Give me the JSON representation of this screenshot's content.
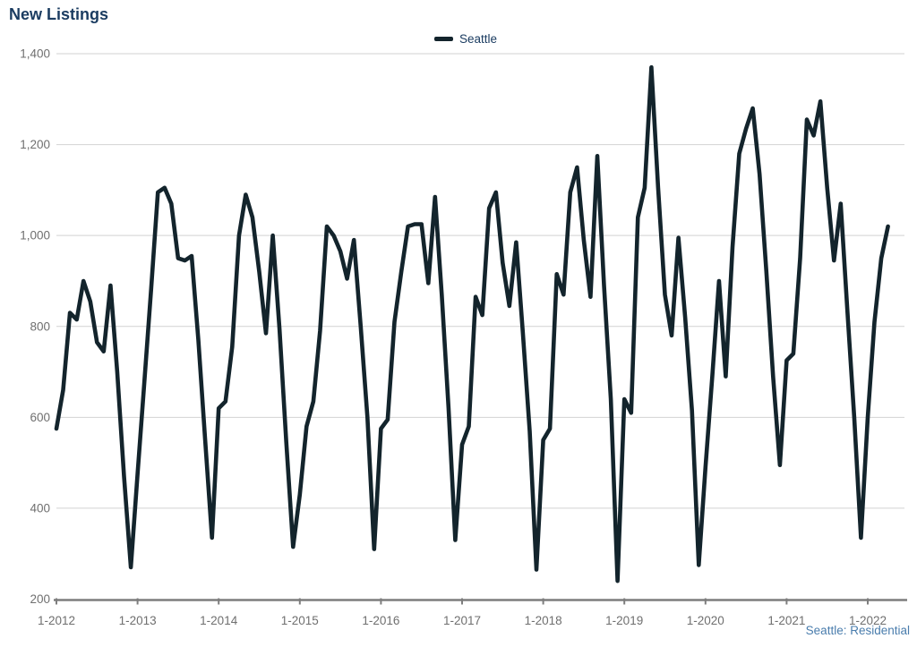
{
  "title": "New Listings",
  "legend": {
    "items": [
      {
        "label": "Seattle",
        "swatch_color": "#13242c"
      }
    ]
  },
  "footnote": "Seattle: Residential",
  "colors": {
    "title_text": "#1b3c61",
    "line": "#13242c",
    "gridline": "#d2d2d2",
    "axis": "#7d7d7d",
    "tick_text": "#6f6f6f",
    "footnote_text": "#4a7dad",
    "background": "#ffffff"
  },
  "chart_data": {
    "type": "line",
    "title": "New Listings",
    "xlabel": "",
    "ylabel": "",
    "ylim": [
      200,
      1400
    ],
    "grid": "horizontal",
    "legend_position": "top-center",
    "yticks": [
      {
        "value": 200,
        "label": "200"
      },
      {
        "value": 400,
        "label": "400"
      },
      {
        "value": 600,
        "label": "600"
      },
      {
        "value": 800,
        "label": "800"
      },
      {
        "value": 1000,
        "label": "1,000"
      },
      {
        "value": 1200,
        "label": "1,200"
      },
      {
        "value": 1400,
        "label": "1,400"
      }
    ],
    "xticks": [
      "1-2012",
      "1-2013",
      "1-2014",
      "1-2015",
      "1-2016",
      "1-2017",
      "1-2018",
      "1-2019",
      "1-2020",
      "1-2021",
      "1-2022"
    ],
    "x_start": "2012-01",
    "x_freq": "monthly",
    "series": [
      {
        "name": "Seattle",
        "color": "#13242c",
        "values": [
          575,
          660,
          830,
          815,
          900,
          855,
          765,
          745,
          890,
          700,
          470,
          270,
          475,
          675,
          880,
          1095,
          1105,
          1070,
          950,
          945,
          955,
          770,
          550,
          335,
          620,
          635,
          755,
          1000,
          1090,
          1040,
          920,
          785,
          1000,
          795,
          545,
          315,
          430,
          580,
          635,
          790,
          1020,
          1000,
          965,
          905,
          990,
          800,
          600,
          310,
          575,
          595,
          810,
          920,
          1020,
          1025,
          1025,
          895,
          1085,
          870,
          620,
          330,
          540,
          580,
          865,
          825,
          1060,
          1095,
          940,
          845,
          985,
          785,
          570,
          265,
          550,
          575,
          915,
          870,
          1095,
          1150,
          990,
          865,
          1175,
          890,
          640,
          240,
          640,
          610,
          1040,
          1105,
          1370,
          1105,
          870,
          780,
          995,
          820,
          615,
          275,
          490,
          690,
          900,
          690,
          975,
          1180,
          1235,
          1280,
          1135,
          920,
          690,
          495,
          725,
          740,
          950,
          1255,
          1220,
          1295,
          1105,
          945,
          1070,
          830,
          600,
          335,
          600,
          810,
          950,
          1020
        ]
      }
    ]
  }
}
